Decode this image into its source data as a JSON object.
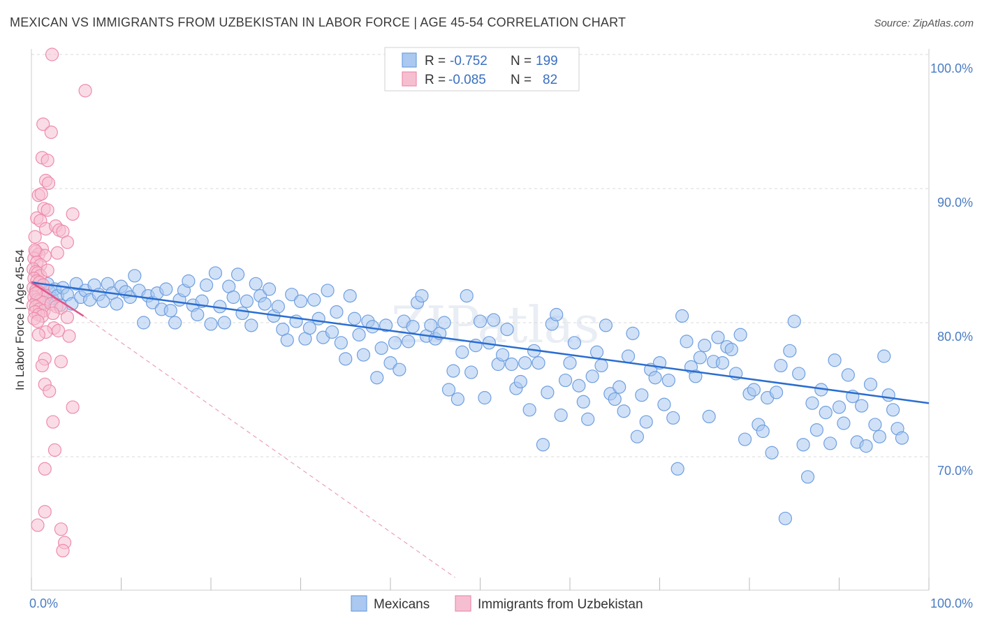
{
  "header": {
    "title": "MEXICAN VS IMMIGRANTS FROM UZBEKISTAN IN LABOR FORCE | AGE 45-54 CORRELATION CHART",
    "source": "Source: ZipAtlas.com"
  },
  "watermark": "ZIPatlas",
  "chart_data": {
    "type": "scatter",
    "ylabel": "In Labor Force | Age 45-54",
    "x_tick_labels": [
      "0.0%",
      "100.0%"
    ],
    "y_tick_labels": [
      "100.0%",
      "90.0%",
      "80.0%",
      "70.0%"
    ],
    "y_ticks": [
      100,
      90,
      80,
      70
    ],
    "xlim": [
      0,
      100
    ],
    "ylim": [
      61,
      105
    ],
    "grid": true,
    "legend_position": "top-center",
    "stats_legend": [
      {
        "r_label": "R =",
        "r_value": "-0.752",
        "n_label": "N =",
        "n_value": "199"
      },
      {
        "r_label": "R =",
        "r_value": "-0.085",
        "n_label": "N =",
        "n_value": "82"
      }
    ],
    "series": [
      {
        "name": "Mexicans",
        "color": "#6f9fe0",
        "fill": "#aac8f0",
        "trend": {
          "x": [
            0,
            100
          ],
          "y": [
            83.0,
            74.0
          ],
          "color": "#2a6dd0"
        },
        "points": [
          [
            0.5,
            82.4
          ],
          [
            0.8,
            81.9
          ],
          [
            1.0,
            82.7
          ],
          [
            1.2,
            82.1
          ],
          [
            1.5,
            81.5
          ],
          [
            1.8,
            82.9
          ],
          [
            2.0,
            82.3
          ],
          [
            2.3,
            81.8
          ],
          [
            2.6,
            82.5
          ],
          [
            2.9,
            82.0
          ],
          [
            3.2,
            81.3
          ],
          [
            3.5,
            82.6
          ],
          [
            4.0,
            82.1
          ],
          [
            4.5,
            81.4
          ],
          [
            5.0,
            82.9
          ],
          [
            5.5,
            81.9
          ],
          [
            6.0,
            82.4
          ],
          [
            6.5,
            81.7
          ],
          [
            7.0,
            82.8
          ],
          [
            7.5,
            82.1
          ],
          [
            8.0,
            81.6
          ],
          [
            8.5,
            82.9
          ],
          [
            9.0,
            82.2
          ],
          [
            9.5,
            81.4
          ],
          [
            10.0,
            82.7
          ],
          [
            10.5,
            82.3
          ],
          [
            11.0,
            81.9
          ],
          [
            11.5,
            83.5
          ],
          [
            12.0,
            82.4
          ],
          [
            12.5,
            80.0
          ],
          [
            13.0,
            82.0
          ],
          [
            13.5,
            81.5
          ],
          [
            14.0,
            82.2
          ],
          [
            14.5,
            81.0
          ],
          [
            15.0,
            82.5
          ],
          [
            15.5,
            80.9
          ],
          [
            16.0,
            80.0
          ],
          [
            16.5,
            81.7
          ],
          [
            17.0,
            82.4
          ],
          [
            17.5,
            83.1
          ],
          [
            18.0,
            81.3
          ],
          [
            18.5,
            80.6
          ],
          [
            19.0,
            81.6
          ],
          [
            19.5,
            82.8
          ],
          [
            20.0,
            79.9
          ],
          [
            20.5,
            83.7
          ],
          [
            21.0,
            81.2
          ],
          [
            21.5,
            80.0
          ],
          [
            22.0,
            82.7
          ],
          [
            22.5,
            81.9
          ],
          [
            23.0,
            83.6
          ],
          [
            23.5,
            80.7
          ],
          [
            24.0,
            81.6
          ],
          [
            24.5,
            79.8
          ],
          [
            25.0,
            82.9
          ],
          [
            25.5,
            82.0
          ],
          [
            26.0,
            81.4
          ],
          [
            26.5,
            82.5
          ],
          [
            27.0,
            80.5
          ],
          [
            27.5,
            81.2
          ],
          [
            28.0,
            79.5
          ],
          [
            28.5,
            78.7
          ],
          [
            29.0,
            82.1
          ],
          [
            29.5,
            80.1
          ],
          [
            30.0,
            81.6
          ],
          [
            30.5,
            78.8
          ],
          [
            31.0,
            79.6
          ],
          [
            31.5,
            81.7
          ],
          [
            32.0,
            80.3
          ],
          [
            32.5,
            78.9
          ],
          [
            33.0,
            82.4
          ],
          [
            33.5,
            79.3
          ],
          [
            34.0,
            80.8
          ],
          [
            34.5,
            78.5
          ],
          [
            35.0,
            77.3
          ],
          [
            35.5,
            82.0
          ],
          [
            36.0,
            80.3
          ],
          [
            36.5,
            79.1
          ],
          [
            37.0,
            77.6
          ],
          [
            37.5,
            80.1
          ],
          [
            38.0,
            79.7
          ],
          [
            38.5,
            75.9
          ],
          [
            39.0,
            78.1
          ],
          [
            39.5,
            79.8
          ],
          [
            40.0,
            77.0
          ],
          [
            40.5,
            78.5
          ],
          [
            41.0,
            76.5
          ],
          [
            41.5,
            80.1
          ],
          [
            42.0,
            78.6
          ],
          [
            42.5,
            79.7
          ],
          [
            43.0,
            81.5
          ],
          [
            43.5,
            82.0
          ],
          [
            44.0,
            79.0
          ],
          [
            44.5,
            79.8
          ],
          [
            45.0,
            78.8
          ],
          [
            45.5,
            79.2
          ],
          [
            46.0,
            80.0
          ],
          [
            46.5,
            75.0
          ],
          [
            47.0,
            76.4
          ],
          [
            47.5,
            74.3
          ],
          [
            48.0,
            77.8
          ],
          [
            48.5,
            82.0
          ],
          [
            49.0,
            76.3
          ],
          [
            49.5,
            78.3
          ],
          [
            50.0,
            80.1
          ],
          [
            50.5,
            74.4
          ],
          [
            51.0,
            78.5
          ],
          [
            51.5,
            80.2
          ],
          [
            52.0,
            76.9
          ],
          [
            52.5,
            77.6
          ],
          [
            53.0,
            79.5
          ],
          [
            53.5,
            76.9
          ],
          [
            54.0,
            75.1
          ],
          [
            54.5,
            75.6
          ],
          [
            55.0,
            77.0
          ],
          [
            55.5,
            73.5
          ],
          [
            56.0,
            77.9
          ],
          [
            56.5,
            77.0
          ],
          [
            57.0,
            70.9
          ],
          [
            57.5,
            74.8
          ],
          [
            58.0,
            79.9
          ],
          [
            58.5,
            80.6
          ],
          [
            59.0,
            73.1
          ],
          [
            59.5,
            75.7
          ],
          [
            60.0,
            77.0
          ],
          [
            60.5,
            78.5
          ],
          [
            61.0,
            75.3
          ],
          [
            61.5,
            74.1
          ],
          [
            62.0,
            72.8
          ],
          [
            62.5,
            76.0
          ],
          [
            63.0,
            77.8
          ],
          [
            63.5,
            76.8
          ],
          [
            64.0,
            79.8
          ],
          [
            64.5,
            74.7
          ],
          [
            65.0,
            74.3
          ],
          [
            65.5,
            75.2
          ],
          [
            66.0,
            73.4
          ],
          [
            66.5,
            77.5
          ],
          [
            67.0,
            79.2
          ],
          [
            67.5,
            71.5
          ],
          [
            68.0,
            74.6
          ],
          [
            68.5,
            72.6
          ],
          [
            69.0,
            76.5
          ],
          [
            69.5,
            75.9
          ],
          [
            70.0,
            77.0
          ],
          [
            70.5,
            73.9
          ],
          [
            71.0,
            75.7
          ],
          [
            71.5,
            72.9
          ],
          [
            72.0,
            69.1
          ],
          [
            72.5,
            80.5
          ],
          [
            73.0,
            78.6
          ],
          [
            73.5,
            76.7
          ],
          [
            74.0,
            76.0
          ],
          [
            74.5,
            77.4
          ],
          [
            75.0,
            78.3
          ],
          [
            75.5,
            73.0
          ],
          [
            76.0,
            77.1
          ],
          [
            76.5,
            78.9
          ],
          [
            77.0,
            77.0
          ],
          [
            77.5,
            78.2
          ],
          [
            78.0,
            78.0
          ],
          [
            78.5,
            76.2
          ],
          [
            79.0,
            79.1
          ],
          [
            79.5,
            71.3
          ],
          [
            80.0,
            74.7
          ],
          [
            80.5,
            75.0
          ],
          [
            81.0,
            72.4
          ],
          [
            81.5,
            71.9
          ],
          [
            82.0,
            74.4
          ],
          [
            82.5,
            70.3
          ],
          [
            83.0,
            74.8
          ],
          [
            83.5,
            76.8
          ],
          [
            84.0,
            65.4
          ],
          [
            84.5,
            77.9
          ],
          [
            85.0,
            80.1
          ],
          [
            85.5,
            76.2
          ],
          [
            86.0,
            70.9
          ],
          [
            86.5,
            68.5
          ],
          [
            87.0,
            74.0
          ],
          [
            87.5,
            72.0
          ],
          [
            88.0,
            75.0
          ],
          [
            88.5,
            73.3
          ],
          [
            89.0,
            71.0
          ],
          [
            89.5,
            77.2
          ],
          [
            90.0,
            73.7
          ],
          [
            90.5,
            72.5
          ],
          [
            91.0,
            76.1
          ],
          [
            91.5,
            74.5
          ],
          [
            92.0,
            71.1
          ],
          [
            92.5,
            73.8
          ],
          [
            93.0,
            70.8
          ],
          [
            93.5,
            75.4
          ],
          [
            94.0,
            72.4
          ],
          [
            94.5,
            71.5
          ],
          [
            95.0,
            77.5
          ],
          [
            95.5,
            74.6
          ],
          [
            96.0,
            73.5
          ],
          [
            96.5,
            72.1
          ],
          [
            97.0,
            71.4
          ]
        ]
      },
      {
        "name": "Immigrants from Uzbekistan",
        "color": "#ee8cab",
        "fill": "#f6bfd1",
        "trend": {
          "x": [
            0,
            5.8
          ],
          "y": [
            83.0,
            80.5
          ],
          "color": "#e0558a",
          "extend_to": [
            47.2,
            61.0
          ]
        },
        "points": [
          [
            2.3,
            100.0
          ],
          [
            6.0,
            97.3
          ],
          [
            1.3,
            94.8
          ],
          [
            2.2,
            94.2
          ],
          [
            1.2,
            92.3
          ],
          [
            1.8,
            92.1
          ],
          [
            1.6,
            90.6
          ],
          [
            1.9,
            90.4
          ],
          [
            0.8,
            89.5
          ],
          [
            1.1,
            89.6
          ],
          [
            1.4,
            88.5
          ],
          [
            1.8,
            88.4
          ],
          [
            4.6,
            88.1
          ],
          [
            0.6,
            87.8
          ],
          [
            1.0,
            87.6
          ],
          [
            1.6,
            87.0
          ],
          [
            2.7,
            87.2
          ],
          [
            3.1,
            86.9
          ],
          [
            3.5,
            86.8
          ],
          [
            0.4,
            86.4
          ],
          [
            4.0,
            86.0
          ],
          [
            1.2,
            85.5
          ],
          [
            0.5,
            85.3
          ],
          [
            0.8,
            85.1
          ],
          [
            1.5,
            85.0
          ],
          [
            2.9,
            85.2
          ],
          [
            0.3,
            84.8
          ],
          [
            0.6,
            84.5
          ],
          [
            1.0,
            84.3
          ],
          [
            0.2,
            84.0
          ],
          [
            0.5,
            83.8
          ],
          [
            0.7,
            83.7
          ],
          [
            1.0,
            83.5
          ],
          [
            0.3,
            83.3
          ],
          [
            0.6,
            83.1
          ],
          [
            0.9,
            83.0
          ],
          [
            1.3,
            82.8
          ],
          [
            0.2,
            82.6
          ],
          [
            0.5,
            82.4
          ],
          [
            0.8,
            82.3
          ],
          [
            1.2,
            82.1
          ],
          [
            1.6,
            82.0
          ],
          [
            0.3,
            81.9
          ],
          [
            0.6,
            81.7
          ],
          [
            0.9,
            81.6
          ],
          [
            1.3,
            81.5
          ],
          [
            0.2,
            81.3
          ],
          [
            0.5,
            81.2
          ],
          [
            0.9,
            81.0
          ],
          [
            1.4,
            80.9
          ],
          [
            2.2,
            81.4
          ],
          [
            2.8,
            81.2
          ],
          [
            3.3,
            81.1
          ],
          [
            0.4,
            80.8
          ],
          [
            0.8,
            80.6
          ],
          [
            1.2,
            80.5
          ],
          [
            0.3,
            80.3
          ],
          [
            0.7,
            80.1
          ],
          [
            4.0,
            80.4
          ],
          [
            2.5,
            79.6
          ],
          [
            3.0,
            79.4
          ],
          [
            1.6,
            79.3
          ],
          [
            0.8,
            79.1
          ],
          [
            4.2,
            79.0
          ],
          [
            1.5,
            77.3
          ],
          [
            3.3,
            77.1
          ],
          [
            1.2,
            76.8
          ],
          [
            1.5,
            75.4
          ],
          [
            2.0,
            74.9
          ],
          [
            4.6,
            73.7
          ],
          [
            2.4,
            72.6
          ],
          [
            2.6,
            70.5
          ],
          [
            1.5,
            69.1
          ],
          [
            1.5,
            65.9
          ],
          [
            0.7,
            64.9
          ],
          [
            3.3,
            64.6
          ],
          [
            3.7,
            63.6
          ],
          [
            3.5,
            63.0
          ],
          [
            0.5,
            82.2
          ],
          [
            1.8,
            83.9
          ],
          [
            0.4,
            85.4
          ],
          [
            2.4,
            80.7
          ]
        ]
      }
    ]
  },
  "bottom_legend": {
    "items": [
      {
        "label": "Mexicans",
        "fill": "#aac8f0",
        "stroke": "#6f9fe0"
      },
      {
        "label": "Immigrants from Uzbekistan",
        "fill": "#f6bfd1",
        "stroke": "#ee8cab"
      }
    ]
  }
}
